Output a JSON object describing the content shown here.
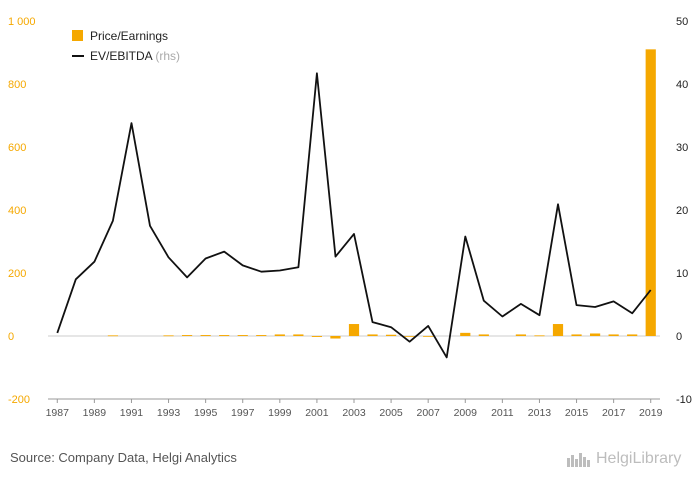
{
  "chart_data": {
    "type": "bar+line",
    "legend": [
      {
        "name": "Price/Earnings",
        "suffix": "",
        "color": "#f5a800",
        "kind": "bar"
      },
      {
        "name": "EV/EBITDA",
        "suffix": "(rhs)",
        "color": "#111111",
        "kind": "line"
      }
    ],
    "legend_position": "top-left",
    "x": [
      1987,
      1988,
      1989,
      1990,
      1991,
      1992,
      1993,
      1994,
      1995,
      1996,
      1997,
      1998,
      1999,
      2000,
      2001,
      2002,
      2003,
      2004,
      2005,
      2006,
      2007,
      2008,
      2009,
      2010,
      2011,
      2012,
      2013,
      2014,
      2015,
      2016,
      2017,
      2018,
      2019
    ],
    "x_ticks": [
      "1987",
      "1989",
      "1991",
      "1993",
      "1995",
      "1997",
      "1999",
      "2001",
      "2003",
      "2005",
      "2007",
      "2009",
      "2011",
      "2013",
      "2015",
      "2017",
      "2019"
    ],
    "y_left": {
      "lim": [
        -200,
        1000
      ],
      "ticks": [
        -200,
        0,
        200,
        400,
        600,
        800,
        1000
      ],
      "tick_labels": [
        "-200",
        "0",
        "200",
        "400",
        "600",
        "800",
        "1 000"
      ]
    },
    "y_right": {
      "lim": [
        -10,
        50
      ],
      "ticks": [
        -10,
        0,
        10,
        20,
        30,
        40,
        50
      ],
      "tick_labels": [
        "-10",
        "0",
        "10",
        "20",
        "30",
        "40",
        "50"
      ]
    },
    "series": [
      {
        "name": "Price/Earnings",
        "axis": "left",
        "values": [
          null,
          null,
          null,
          2,
          null,
          null,
          2,
          3,
          3,
          3,
          3,
          3,
          5,
          5,
          -3,
          -8,
          38,
          5,
          4,
          0,
          -2,
          null,
          10,
          5,
          null,
          5,
          2,
          38,
          5,
          8,
          5,
          5,
          910
        ]
      },
      {
        "name": "EV/EBITDA",
        "axis": "right",
        "values": [
          0.5,
          9.0,
          11.8,
          18.3,
          33.8,
          17.5,
          12.5,
          9.3,
          12.3,
          13.4,
          11.2,
          10.2,
          10.4,
          10.9,
          41.7,
          12.6,
          16.2,
          2.2,
          1.4,
          -0.9,
          1.6,
          -3.4,
          15.8,
          5.6,
          3.1,
          5.1,
          3.3,
          20.9,
          4.9,
          4.6,
          5.5,
          3.6,
          7.3
        ]
      }
    ],
    "grid": false
  },
  "footer": {
    "source": "Source: Company Data, Helgi Analytics",
    "brand": "HelgiLibrary"
  }
}
